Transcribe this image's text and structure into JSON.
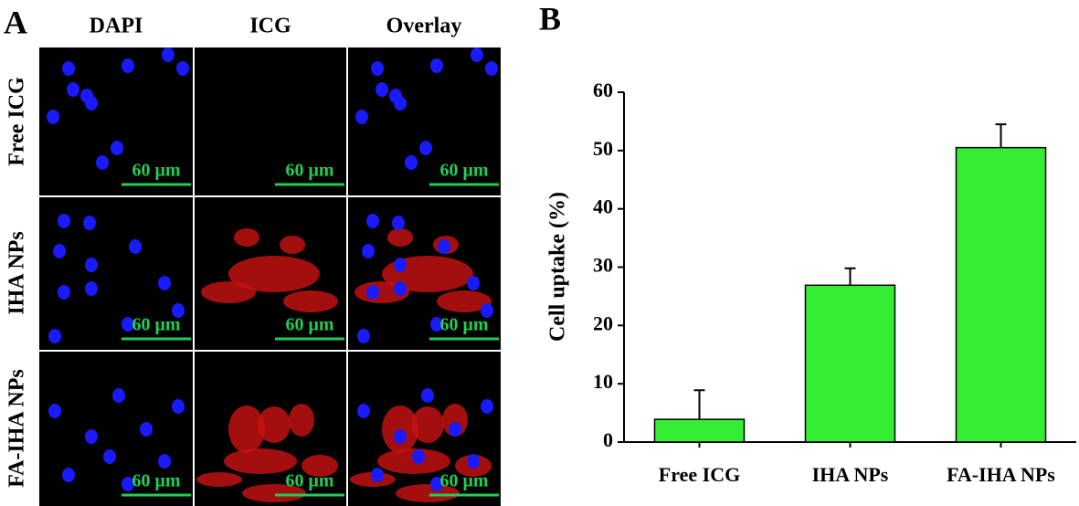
{
  "panel_a": {
    "label": "A",
    "columns": [
      "DAPI",
      "ICG",
      "Overlay"
    ],
    "rows": [
      "Free ICG",
      "IHA NPs",
      "FA-IHA NPs"
    ],
    "scale_bar": "60 μm"
  },
  "chart_data": {
    "type": "bar",
    "panel_label": "B",
    "ylabel": "Cell uptake (%)",
    "categories": [
      "Free ICG",
      "IHA NPs",
      "FA-IHA NPs"
    ],
    "values": [
      3.9,
      26.9,
      50.5
    ],
    "errors": [
      5.0,
      2.9,
      4.0
    ],
    "color": "#33ee33",
    "ylim": [
      0,
      60
    ],
    "yticks": [
      0,
      10,
      20,
      30,
      40,
      50,
      60
    ],
    "grid": false
  }
}
